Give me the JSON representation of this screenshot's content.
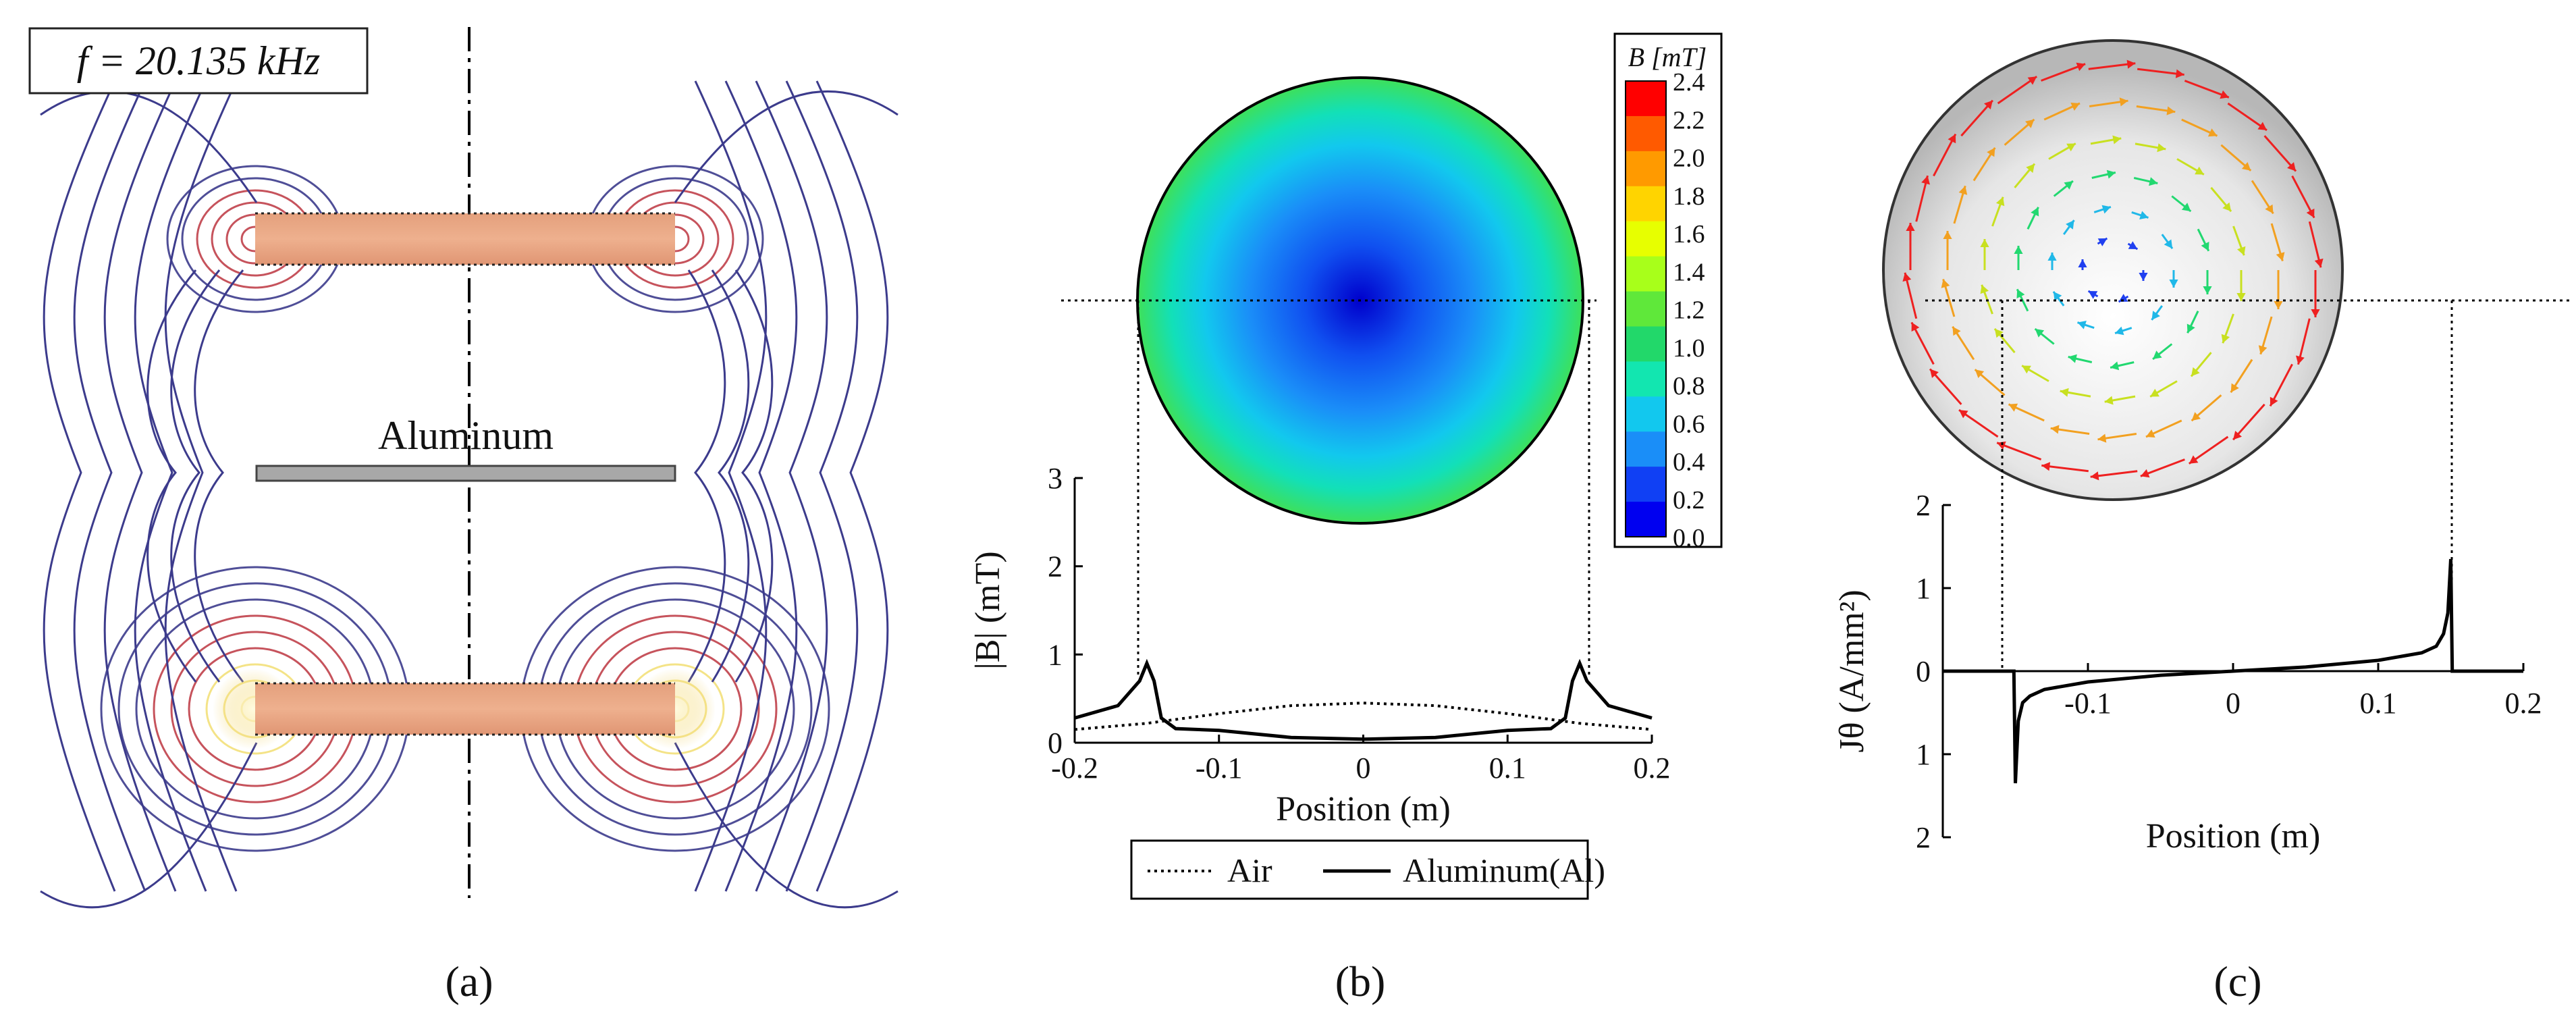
{
  "panels": [
    {
      "id": "a",
      "label": "(a)"
    },
    {
      "id": "b",
      "label": "(b)"
    },
    {
      "id": "c",
      "label": "(c)"
    }
  ],
  "panel_a": {
    "frequency_label": "f = 20.135 kHz",
    "plate_label": "Aluminum",
    "colors": {
      "coil": "#e9a57f",
      "plate": "#a8a8a8",
      "line_outer": "#3c3b8c",
      "line_inner": "#c0404a",
      "line_core": "#f3e07a"
    }
  },
  "panel_b": {
    "colorbar": {
      "title": "B [mT]",
      "ticks": [
        "2.4",
        "2.2",
        "2.0",
        "1.8",
        "1.6",
        "1.4",
        "1.2",
        "1.0",
        "0.8",
        "0.6",
        "0.4",
        "0.2",
        "0.0"
      ],
      "colors": [
        "#ff0000",
        "#ff5a00",
        "#ff9a00",
        "#ffd400",
        "#e7ff00",
        "#a8ff1a",
        "#5fe83a",
        "#22d86a",
        "#12e6b0",
        "#12c8ee",
        "#1a8ef8",
        "#1040f4",
        "#0000f0"
      ]
    },
    "legend": {
      "air": "Air",
      "aluminum": "Aluminum(Al)"
    }
  },
  "panel_c": {},
  "chart_data": [
    {
      "type": "line",
      "panel": "b",
      "xlabel": "Position (m)",
      "ylabel": "|B| (mT)",
      "xlim": [
        -0.2,
        0.2
      ],
      "ylim": [
        0,
        3
      ],
      "xticks": [
        "-0.2",
        "-0.1",
        "0",
        "0.1",
        "0.2"
      ],
      "yticks": [
        "0",
        "1",
        "2",
        "3"
      ],
      "legend_position": "bottom",
      "series": [
        {
          "name": "Air",
          "style": "dotted",
          "x": [
            -0.2,
            -0.15,
            -0.1,
            -0.05,
            0,
            0.05,
            0.1,
            0.15,
            0.2
          ],
          "y": [
            0.15,
            0.22,
            0.33,
            0.42,
            0.45,
            0.42,
            0.33,
            0.22,
            0.15
          ]
        },
        {
          "name": "Aluminum(Al)",
          "style": "solid",
          "x": [
            -0.2,
            -0.17,
            -0.155,
            -0.15,
            -0.145,
            -0.14,
            -0.13,
            -0.1,
            -0.05,
            0,
            0.05,
            0.1,
            0.13,
            0.14,
            0.145,
            0.15,
            0.155,
            0.17,
            0.2
          ],
          "y": [
            0.28,
            0.42,
            0.7,
            0.9,
            0.7,
            0.28,
            0.16,
            0.14,
            0.06,
            0.04,
            0.06,
            0.14,
            0.16,
            0.28,
            0.7,
            0.9,
            0.7,
            0.42,
            0.28
          ]
        }
      ]
    },
    {
      "type": "line",
      "panel": "c",
      "xlabel": "Position (m)",
      "ylabel": "Jθ (A/mm²)",
      "xlim": [
        -0.2,
        0.2
      ],
      "ylim": [
        -2,
        2
      ],
      "xticks": [
        "-0.1",
        "0",
        "0.1",
        "0.2"
      ],
      "yticks": [
        "2",
        "1",
        "0",
        "1",
        "2"
      ],
      "series": [
        {
          "name": "",
          "style": "solid",
          "x": [
            -0.2,
            -0.151,
            -0.15,
            -0.148,
            -0.145,
            -0.14,
            -0.13,
            -0.1,
            -0.05,
            0,
            0.05,
            0.1,
            0.13,
            0.14,
            0.145,
            0.148,
            0.15,
            0.151,
            0.2
          ],
          "y": [
            0,
            0,
            -1.35,
            -0.6,
            -0.38,
            -0.3,
            -0.22,
            -0.13,
            -0.05,
            0,
            0.05,
            0.13,
            0.22,
            0.3,
            0.45,
            0.7,
            1.35,
            0,
            0
          ]
        }
      ]
    }
  ]
}
